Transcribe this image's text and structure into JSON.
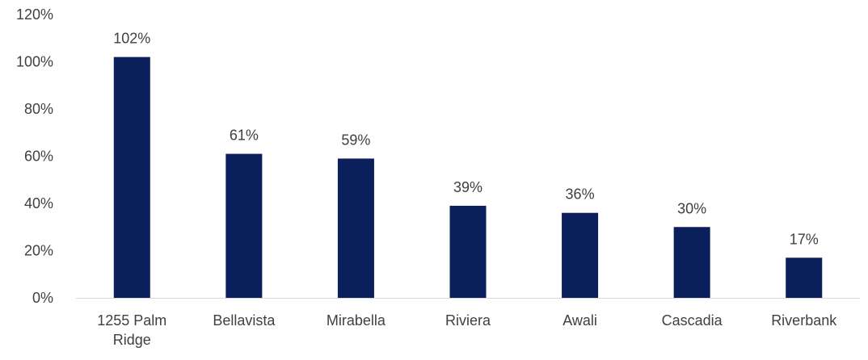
{
  "chart_data": {
    "type": "bar",
    "categories": [
      [
        "1255 Palm",
        "Ridge"
      ],
      [
        "Bellavista"
      ],
      [
        "Mirabella"
      ],
      [
        "Riviera"
      ],
      [
        "Awali"
      ],
      [
        "Cascadia"
      ],
      [
        "Riverbank"
      ]
    ],
    "values": [
      102,
      61,
      59,
      39,
      36,
      30,
      17
    ],
    "data_labels": [
      "102%",
      "61%",
      "59%",
      "39%",
      "36%",
      "30%",
      "17%"
    ],
    "yticks": [
      0,
      20,
      40,
      60,
      80,
      100,
      120
    ],
    "ytick_labels": [
      "0%",
      "20%",
      "40%",
      "60%",
      "80%",
      "100%",
      "120%"
    ],
    "ylim": [
      0,
      120
    ],
    "unit": "%",
    "grid": false,
    "legend": "none",
    "bar_color": "#0b1f5c",
    "axis_color": "#d9d9d9",
    "text_color": "#404040"
  }
}
